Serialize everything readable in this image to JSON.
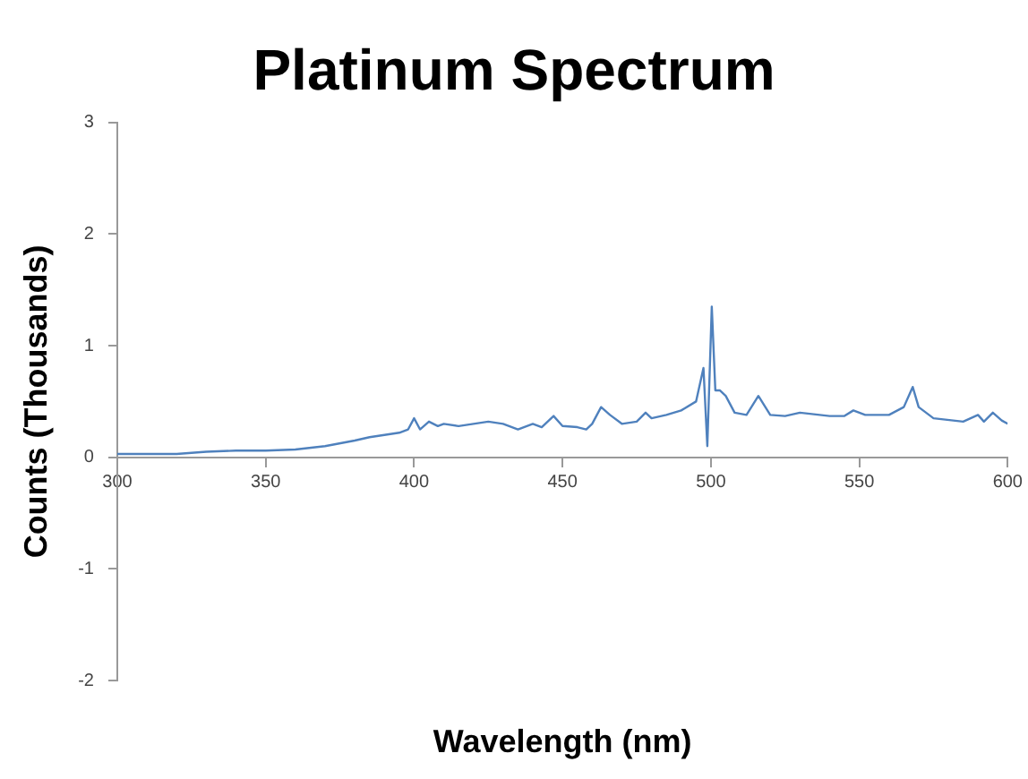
{
  "chart_data": {
    "type": "line",
    "title": "Platinum Spectrum",
    "xlabel": "Wavelength (nm)",
    "ylabel": "Counts (Thousands)",
    "xlim": [
      300,
      600
    ],
    "xticks": [
      300,
      350,
      400,
      450,
      500,
      550,
      600
    ],
    "ylim": [
      -2,
      3
    ],
    "yticks": [
      -2,
      -1,
      0,
      1,
      2,
      3
    ],
    "grid": false,
    "legend": false,
    "marker": "none",
    "line_style": "solid",
    "series": [
      {
        "color": "#4f81bd",
        "x": [
          300,
          310,
          320,
          330,
          340,
          350,
          360,
          370,
          380,
          385,
          390,
          395,
          398,
          400,
          402,
          405,
          408,
          410,
          415,
          420,
          425,
          430,
          435,
          440,
          443,
          447,
          450,
          455,
          458,
          460,
          463,
          466,
          470,
          475,
          478,
          480,
          485,
          490,
          495,
          497.5,
          498.8,
          500.3,
          501.5,
          503,
          505,
          508,
          512,
          516,
          520,
          525,
          530,
          540,
          545,
          548,
          552,
          560,
          565,
          568,
          570,
          575,
          585,
          590,
          592,
          595,
          598,
          600
        ],
        "values": [
          0.03,
          0.03,
          0.03,
          0.05,
          0.06,
          0.06,
          0.07,
          0.1,
          0.15,
          0.18,
          0.2,
          0.22,
          0.25,
          0.35,
          0.25,
          0.32,
          0.28,
          0.3,
          0.28,
          0.3,
          0.32,
          0.3,
          0.25,
          0.3,
          0.27,
          0.37,
          0.28,
          0.27,
          0.25,
          0.3,
          0.45,
          0.38,
          0.3,
          0.32,
          0.4,
          0.35,
          0.38,
          0.42,
          0.5,
          0.8,
          0.1,
          1.35,
          0.6,
          0.6,
          0.55,
          0.4,
          0.38,
          0.55,
          0.38,
          0.37,
          0.4,
          0.37,
          0.37,
          0.42,
          0.38,
          0.38,
          0.45,
          0.63,
          0.45,
          0.35,
          0.32,
          0.38,
          0.32,
          0.4,
          0.33,
          0.3
        ]
      }
    ]
  }
}
